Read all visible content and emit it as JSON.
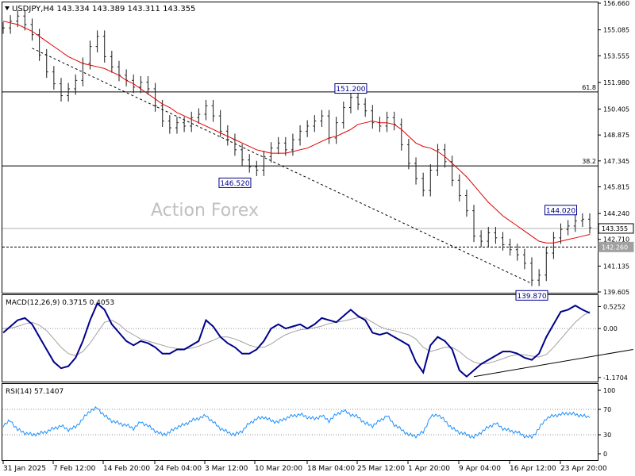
{
  "chart_data": {
    "type": "candlestick",
    "symbol_header": "USDJPY,H4  143.334 143.389 143.311 143.355",
    "watermark": "Action Forex",
    "price_axis": {
      "ticks": [
        156.66,
        155.085,
        153.555,
        151.98,
        150.405,
        148.875,
        147.345,
        145.815,
        144.24,
        142.71,
        141.135,
        139.605
      ]
    },
    "current_price": {
      "label": "143.355",
      "value": 143.355
    },
    "level_line": {
      "label": "142.260",
      "value": 142.26
    },
    "fib_levels": [
      {
        "label": "61.8",
        "value": 151.42
      },
      {
        "label": "38.2",
        "value": 147.05
      }
    ],
    "annotations": [
      {
        "label": "151.200",
        "date_index": 48,
        "value": 151.2
      },
      {
        "label": "146.520",
        "date_index": 32,
        "value": 146.52
      },
      {
        "label": "144.020",
        "date_index": 77,
        "value": 144.02
      },
      {
        "label": "139.870",
        "date_index": 73,
        "value": 139.87
      }
    ],
    "date_labels": [
      "31 Jan 2025",
      "7 Feb 12:00",
      "14 Feb 20:00",
      "24 Feb 04:00",
      "3 Mar 12:00",
      "10 Mar 20:00",
      "18 Mar 04:00",
      "25 Mar 12:00",
      "1 Apr 20:00",
      "9 Apr 04:00",
      "16 Apr 12:00",
      "23 Apr 20:00"
    ],
    "price_series": [
      155.2,
      155.6,
      155.9,
      155.4,
      154.8,
      153.6,
      152.6,
      151.9,
      151.2,
      151.6,
      152.1,
      153.1,
      154.1,
      154.7,
      153.5,
      152.9,
      152.4,
      152.1,
      151.7,
      152.0,
      151.6,
      150.6,
      149.7,
      149.3,
      149.6,
      149.4,
      149.9,
      150.1,
      150.6,
      150.0,
      149.1,
      148.6,
      148.0,
      147.4,
      147.0,
      146.8,
      147.6,
      148.1,
      148.4,
      148.0,
      148.6,
      149.1,
      149.4,
      149.7,
      150.0,
      148.7,
      149.6,
      150.5,
      151.1,
      150.7,
      150.3,
      149.6,
      149.4,
      149.9,
      149.5,
      148.3,
      147.2,
      146.3,
      145.6,
      146.8,
      148.0,
      147.3,
      146.2,
      145.3,
      144.4,
      142.9,
      142.6,
      143.1,
      142.8,
      142.4,
      142.1,
      141.8,
      141.3,
      140.3,
      140.6,
      141.9,
      142.8,
      143.3,
      143.5,
      143.8,
      143.9,
      143.4
    ],
    "ma_series": [
      155.6,
      155.5,
      155.4,
      155.2,
      155.0,
      154.7,
      154.4,
      154.1,
      153.8,
      153.5,
      153.3,
      153.1,
      153.0,
      152.9,
      152.8,
      152.6,
      152.4,
      152.1,
      151.9,
      151.6,
      151.3,
      151.0,
      150.7,
      150.5,
      150.2,
      150.0,
      149.8,
      149.6,
      149.4,
      149.2,
      149.0,
      148.8,
      148.6,
      148.4,
      148.2,
      148.0,
      147.9,
      147.8,
      147.8,
      147.8,
      147.9,
      148.0,
      148.1,
      148.3,
      148.5,
      148.7,
      148.8,
      149.0,
      149.2,
      149.5,
      149.6,
      149.7,
      149.6,
      149.6,
      149.5,
      149.2,
      148.8,
      148.4,
      148.2,
      148.1,
      147.9,
      147.6,
      147.2,
      146.8,
      146.4,
      145.9,
      145.4,
      144.9,
      144.5,
      144.1,
      143.8,
      143.5,
      143.2,
      142.9,
      142.6,
      142.5,
      142.5,
      142.6,
      142.7,
      142.8,
      142.9,
      143.0
    ],
    "trendlines": [
      {
        "from": [
          4,
          154.0
        ],
        "to": [
          73,
          140.1
        ]
      }
    ],
    "macd": {
      "header": "MACD(12,26,9) 0.3715 0.4053",
      "ticks": [
        0.5252,
        0.0,
        -1.1704
      ],
      "tick_labels": [
        "0.5252",
        "0.00",
        "-1.1704"
      ],
      "range": [
        -1.25,
        0.78
      ],
      "main": [
        -0.1,
        0.05,
        0.2,
        0.25,
        0.1,
        -0.2,
        -0.5,
        -0.8,
        -0.95,
        -0.9,
        -0.7,
        -0.3,
        0.2,
        0.6,
        0.45,
        0.1,
        -0.1,
        -0.3,
        -0.4,
        -0.3,
        -0.35,
        -0.45,
        -0.6,
        -0.6,
        -0.5,
        -0.5,
        -0.4,
        -0.3,
        0.2,
        0.05,
        -0.2,
        -0.35,
        -0.45,
        -0.6,
        -0.6,
        -0.5,
        -0.3,
        0.0,
        0.1,
        0.0,
        0.05,
        0.1,
        0.0,
        0.1,
        0.25,
        0.2,
        0.15,
        0.3,
        0.45,
        0.3,
        0.2,
        -0.1,
        -0.15,
        -0.1,
        -0.2,
        -0.3,
        -0.4,
        -0.8,
        -1.05,
        -0.4,
        -0.2,
        -0.3,
        -0.5,
        -1.0,
        -1.15,
        -1.0,
        -0.85,
        -0.75,
        -0.65,
        -0.55,
        -0.55,
        -0.6,
        -0.7,
        -0.75,
        -0.6,
        -0.2,
        0.1,
        0.4,
        0.45,
        0.55,
        0.45,
        0.37
      ],
      "signal": [
        0.0,
        0.01,
        0.05,
        0.11,
        0.15,
        0.08,
        -0.05,
        -0.25,
        -0.45,
        -0.6,
        -0.65,
        -0.55,
        -0.35,
        -0.1,
        0.15,
        0.2,
        0.1,
        -0.05,
        -0.15,
        -0.25,
        -0.3,
        -0.35,
        -0.4,
        -0.45,
        -0.48,
        -0.49,
        -0.47,
        -0.42,
        -0.35,
        -0.28,
        -0.2,
        -0.2,
        -0.25,
        -0.32,
        -0.4,
        -0.45,
        -0.45,
        -0.37,
        -0.25,
        -0.15,
        -0.08,
        -0.03,
        -0.01,
        0.02,
        0.06,
        0.12,
        0.15,
        0.18,
        0.22,
        0.26,
        0.25,
        0.15,
        0.05,
        -0.02,
        -0.05,
        -0.1,
        -0.15,
        -0.25,
        -0.45,
        -0.55,
        -0.5,
        -0.45,
        -0.45,
        -0.55,
        -0.7,
        -0.8,
        -0.85,
        -0.83,
        -0.78,
        -0.72,
        -0.66,
        -0.62,
        -0.63,
        -0.66,
        -0.68,
        -0.62,
        -0.45,
        -0.25,
        -0.05,
        0.15,
        0.3,
        0.41
      ],
      "trendline": {
        "from": [
          65,
          -1.15
        ],
        "to": [
          87,
          -0.5
        ]
      }
    },
    "rsi": {
      "header": "RSI(14) 57.1407",
      "ticks": [
        100,
        70,
        30,
        0
      ],
      "levels": [
        70,
        30
      ],
      "series": [
        45,
        52,
        38,
        33,
        30,
        32,
        35,
        40,
        44,
        38,
        42,
        55,
        68,
        72,
        60,
        52,
        48,
        45,
        40,
        50,
        44,
        36,
        30,
        34,
        42,
        46,
        52,
        56,
        60,
        50,
        40,
        34,
        30,
        36,
        48,
        55,
        58,
        52,
        50,
        56,
        60,
        62,
        58,
        55,
        60,
        52,
        62,
        68,
        62,
        58,
        48,
        44,
        52,
        60,
        46,
        38,
        30,
        28,
        34,
        58,
        62,
        52,
        40,
        34,
        30,
        26,
        34,
        42,
        48,
        40,
        36,
        34,
        28,
        26,
        40,
        56,
        60,
        62,
        64,
        62,
        60,
        57
      ]
    }
  }
}
